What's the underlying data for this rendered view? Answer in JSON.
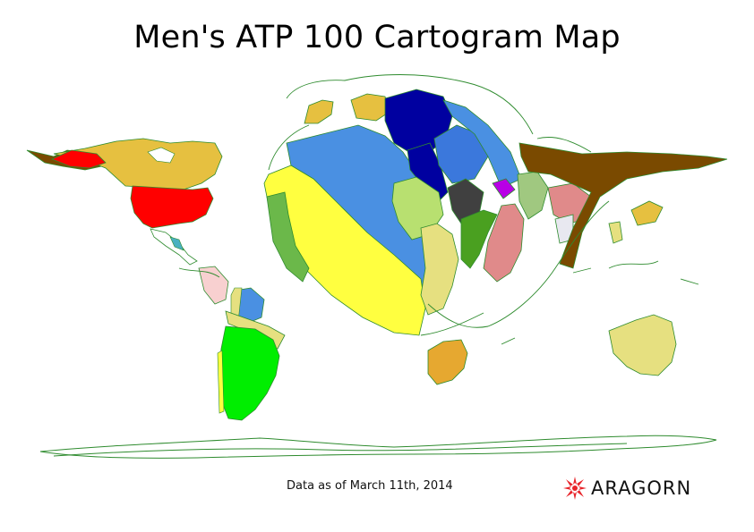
{
  "title": "Men's ATP 100 Cartogram Map",
  "footnote": "Data as of March 11th, 2014",
  "logo": {
    "text": "ARAGORN",
    "icon": "snowflake-star-logo-icon",
    "color": "#e8242a"
  },
  "colors": {
    "outline": "#2e8b2e",
    "usa": "#ff0000",
    "canada": "#e6c040",
    "spain": "#ffff40",
    "france": "#4a90e2",
    "germany": "#0000a0",
    "russia": "#7a4a00",
    "argentina": "#00ee00",
    "australia": "#e6e080"
  }
}
